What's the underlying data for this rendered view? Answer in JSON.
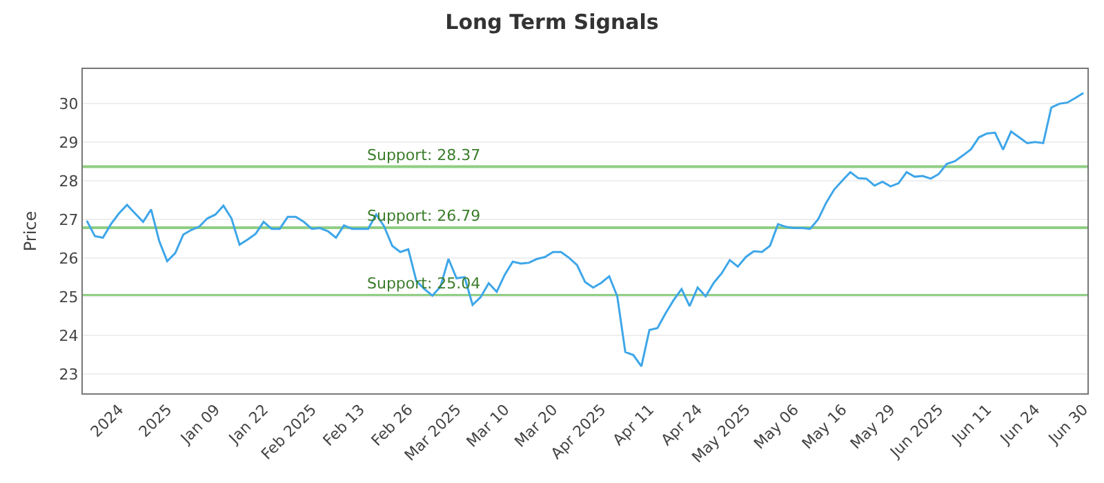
{
  "chart_data": {
    "type": "line",
    "title": "Long Term Signals",
    "ylabel": "Price",
    "categories": [
      null,
      null,
      null,
      null,
      "2024",
      null,
      null,
      null,
      null,
      null,
      "2025",
      null,
      null,
      null,
      null,
      null,
      "Jan 09",
      null,
      null,
      null,
      null,
      null,
      "Jan 22",
      null,
      null,
      null,
      null,
      null,
      "Feb 2025",
      null,
      null,
      null,
      null,
      null,
      "Feb 13",
      null,
      null,
      null,
      null,
      null,
      "Feb 26",
      null,
      null,
      null,
      null,
      null,
      "Mar 2025",
      null,
      null,
      null,
      null,
      null,
      "Mar 10",
      null,
      null,
      null,
      null,
      null,
      "Mar 20",
      null,
      null,
      null,
      null,
      null,
      "Apr 2025",
      null,
      null,
      null,
      null,
      null,
      "Apr 11",
      null,
      null,
      null,
      null,
      null,
      "Apr 24",
      null,
      null,
      null,
      null,
      null,
      "May 2025",
      null,
      null,
      null,
      null,
      null,
      "May 06",
      null,
      null,
      null,
      null,
      null,
      "May 16",
      null,
      null,
      null,
      null,
      null,
      "May 29",
      null,
      null,
      null,
      null,
      null,
      "Jun 2025",
      null,
      null,
      null,
      null,
      null,
      "Jun 11",
      null,
      null,
      null,
      null,
      null,
      "Jun 24",
      null,
      null,
      null,
      null,
      null,
      "Jun 30"
    ],
    "series": [
      {
        "color": "#3ea6e8",
        "values": [
          26.97,
          26.57,
          26.53,
          26.88,
          27.16,
          27.38,
          27.16,
          26.94,
          27.26,
          26.45,
          25.92,
          26.13,
          26.61,
          26.73,
          26.82,
          27.03,
          27.13,
          27.36,
          27.03,
          26.35,
          26.48,
          26.63,
          26.94,
          26.76,
          26.76,
          27.07,
          27.07,
          26.94,
          26.76,
          26.78,
          26.7,
          26.53,
          26.85,
          26.76,
          26.76,
          26.76,
          27.13,
          26.82,
          26.32,
          26.16,
          26.23,
          25.41,
          25.2,
          25.03,
          25.26,
          25.98,
          25.48,
          25.51,
          24.79,
          24.99,
          25.35,
          25.13,
          25.57,
          25.91,
          25.86,
          25.88,
          25.98,
          26.03,
          26.16,
          26.16,
          26.01,
          25.82,
          25.38,
          25.24,
          25.36,
          25.53,
          25.01,
          23.57,
          23.49,
          23.2,
          24.14,
          24.19,
          24.57,
          24.91,
          25.2,
          24.76,
          25.24,
          25.01,
          25.36,
          25.61,
          25.95,
          25.78,
          26.03,
          26.18,
          26.16,
          26.32,
          26.88,
          26.81,
          26.78,
          26.78,
          26.76,
          27.01,
          27.44,
          27.78,
          28.01,
          28.23,
          28.07,
          28.06,
          27.88,
          27.98,
          27.86,
          27.94,
          28.23,
          28.11,
          28.13,
          28.06,
          28.18,
          28.44,
          28.51,
          28.66,
          28.82,
          29.13,
          29.23,
          29.25,
          28.81,
          29.28,
          29.13,
          28.98,
          29.01,
          28.98,
          29.9,
          30.0,
          30.03,
          30.15,
          30.28
        ]
      }
    ],
    "ylim": [
      22.5,
      30.9
    ],
    "yticks": [
      23,
      24,
      25,
      26,
      27,
      28,
      29,
      30
    ],
    "grid": "y",
    "marker": "none",
    "line_style": "solid",
    "ref_lines": [
      {
        "axis": "y",
        "value": 28.37,
        "label": "Support: 28.37",
        "color": "#8fce83"
      },
      {
        "axis": "y",
        "value": 26.79,
        "label": "Support: 26.79",
        "color": "#8fce83"
      },
      {
        "axis": "y",
        "value": 25.04,
        "label": "Support: 25.04",
        "color": "#8fce83"
      }
    ]
  }
}
